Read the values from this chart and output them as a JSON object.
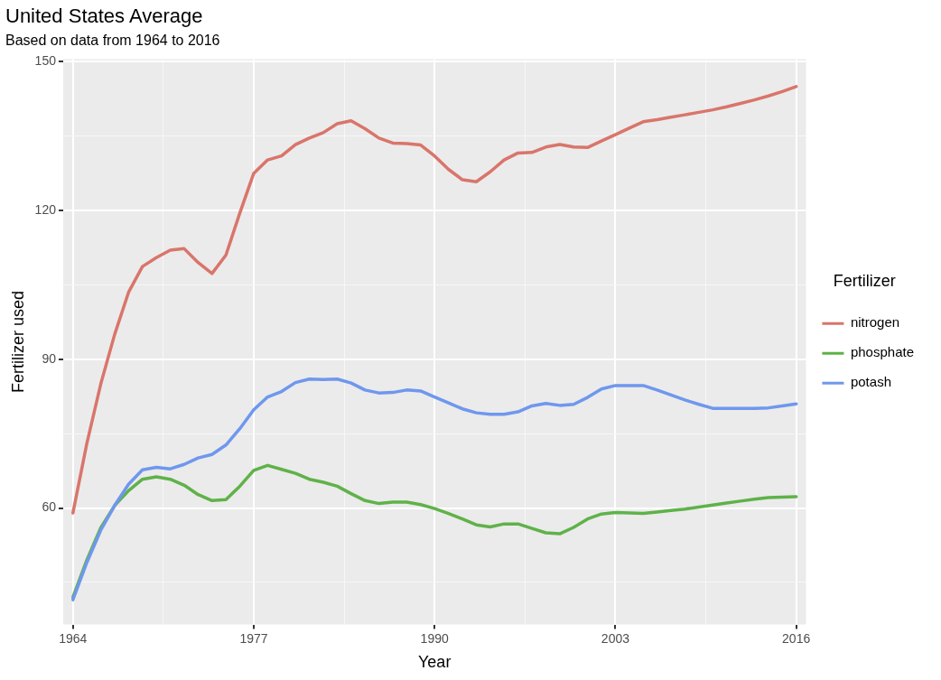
{
  "chart_data": {
    "type": "line",
    "title": "United States Average",
    "subtitle": "Based on data from 1964 to 2016",
    "xlabel": "Year",
    "ylabel": "Fertilizer used",
    "legend_title": "Fertilizer",
    "legend": "right",
    "grid": true,
    "marker": "none",
    "line_style": "solid",
    "x": [
      1964,
      1965,
      1966,
      1967,
      1968,
      1969,
      1970,
      1971,
      1972,
      1973,
      1974,
      1975,
      1976,
      1977,
      1978,
      1979,
      1980,
      1981,
      1982,
      1983,
      1984,
      1985,
      1986,
      1987,
      1988,
      1989,
      1990,
      1991,
      1992,
      1993,
      1994,
      1995,
      1996,
      1997,
      1998,
      1999,
      2000,
      2001,
      2002,
      2003,
      2004,
      2005,
      2006,
      2007,
      2008,
      2009,
      2010,
      2011,
      2012,
      2013,
      2014,
      2015,
      2016
    ],
    "xlim": [
      1963.3,
      2016.7
    ],
    "xticks": [
      1964,
      {
        "value": 1970.5,
        "label": null
      },
      1977,
      {
        "value": 1983.5,
        "label": null
      },
      1990,
      {
        "value": 1996.5,
        "label": null
      },
      2003,
      {
        "value": 2009.5,
        "label": null
      },
      2016
    ],
    "ylim": [
      36.5,
      150.5
    ],
    "yticks": [
      {
        "value": 45,
        "label": null
      },
      60,
      {
        "value": 75,
        "label": null
      },
      90,
      {
        "value": 105,
        "label": null
      },
      120,
      {
        "value": 135,
        "label": null
      },
      150
    ],
    "series": [
      {
        "name": "nitrogen",
        "color": "#d9756b",
        "values": [
          59,
          73,
          85,
          95,
          103.5,
          108.7,
          110.5,
          112,
          112.3,
          109.5,
          107.3,
          111,
          119.5,
          127.5,
          130.2,
          131,
          133.3,
          134.6,
          135.7,
          137.5,
          138.1,
          136.5,
          134.6,
          133.6,
          133.5,
          133.2,
          131,
          128.3,
          126.2,
          125.8,
          127.8,
          130.2,
          131.6,
          131.7,
          132.8,
          133.3,
          132.8,
          132.7,
          134,
          135.3,
          136.6,
          137.9,
          138.3,
          138.8,
          139.3,
          139.8,
          140.3,
          140.9,
          141.6,
          142.3,
          143.1,
          144,
          145
        ]
      },
      {
        "name": "phosphate",
        "color": "#5fb249",
        "values": [
          42,
          49.5,
          56,
          60.5,
          63.5,
          65.8,
          66.3,
          65.8,
          64.6,
          62.7,
          61.5,
          61.7,
          64.4,
          67.6,
          68.6,
          67.8,
          67,
          65.8,
          65.2,
          64.4,
          62.9,
          61.5,
          60.9,
          61.2,
          61.2,
          60.7,
          59.9,
          58.9,
          57.8,
          56.6,
          56.2,
          56.8,
          56.8,
          55.9,
          55,
          54.8,
          56.1,
          57.8,
          58.8,
          59.1,
          59,
          58.9,
          59.2,
          59.5,
          59.8,
          60.2,
          60.6,
          61,
          61.4,
          61.8,
          62.1,
          62.2,
          62.3
        ]
      },
      {
        "name": "potash",
        "color": "#6f97ee",
        "values": [
          41.5,
          49,
          55.5,
          60.5,
          64.8,
          67.7,
          68.2,
          67.9,
          68.8,
          70.1,
          70.8,
          72.7,
          76,
          79.8,
          82.4,
          83.5,
          85.3,
          86,
          85.9,
          86,
          85.2,
          83.8,
          83.2,
          83.3,
          83.8,
          83.6,
          82.4,
          81.2,
          80,
          79.2,
          78.9,
          78.9,
          79.4,
          80.6,
          81.1,
          80.7,
          80.9,
          82.3,
          84,
          84.7,
          84.7,
          84.7,
          83.8,
          82.8,
          81.8,
          80.9,
          80.1,
          80.1,
          80.1,
          80.1,
          80.2,
          80.6,
          81
        ]
      }
    ]
  }
}
